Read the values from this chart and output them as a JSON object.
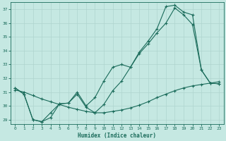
{
  "xlabel": "Humidex (Indice chaleur)",
  "bg_color": "#c5e8e2",
  "grid_color": "#afd4ce",
  "line_color": "#1a6b5a",
  "xlim": [
    -0.5,
    23.5
  ],
  "ylim": [
    28.7,
    37.5
  ],
  "yticks": [
    29,
    30,
    31,
    32,
    33,
    34,
    35,
    36,
    37
  ],
  "xticks": [
    0,
    1,
    2,
    3,
    4,
    5,
    6,
    7,
    8,
    9,
    10,
    11,
    12,
    13,
    14,
    15,
    16,
    17,
    18,
    19,
    20,
    21,
    22,
    23
  ],
  "line1_x": [
    0,
    1,
    2,
    3,
    4,
    5,
    6,
    7,
    8,
    9,
    10,
    11,
    12,
    13,
    14,
    15,
    16,
    17,
    18,
    19,
    20,
    21,
    22,
    23
  ],
  "line1_y": [
    31.3,
    30.85,
    29.0,
    28.85,
    29.15,
    30.15,
    30.2,
    30.85,
    29.9,
    29.5,
    30.1,
    31.1,
    31.8,
    32.8,
    33.9,
    34.7,
    35.6,
    37.2,
    37.3,
    36.8,
    36.6,
    32.6,
    31.65,
    31.6
  ],
  "line2_x": [
    0,
    1,
    2,
    3,
    4,
    5,
    6,
    7,
    8,
    9,
    10,
    11,
    12,
    13,
    14,
    15,
    16,
    17,
    18,
    19,
    20,
    21,
    22,
    23
  ],
  "line2_y": [
    31.3,
    30.85,
    29.0,
    28.85,
    29.5,
    30.15,
    30.2,
    31.0,
    30.0,
    30.6,
    31.8,
    32.8,
    33.0,
    32.8,
    33.8,
    34.5,
    35.3,
    36.0,
    37.1,
    36.6,
    35.9,
    32.6,
    31.65,
    31.6
  ],
  "line3_x": [
    0,
    1,
    2,
    3,
    4,
    5,
    6,
    7,
    8,
    9,
    10,
    11,
    12,
    13,
    14,
    15,
    16,
    17,
    18,
    19,
    20,
    21,
    22,
    23
  ],
  "line3_y": [
    31.15,
    31.0,
    30.75,
    30.5,
    30.3,
    30.1,
    29.9,
    29.75,
    29.6,
    29.5,
    29.5,
    29.6,
    29.7,
    29.85,
    30.05,
    30.3,
    30.6,
    30.85,
    31.1,
    31.3,
    31.45,
    31.55,
    31.65,
    31.75
  ]
}
